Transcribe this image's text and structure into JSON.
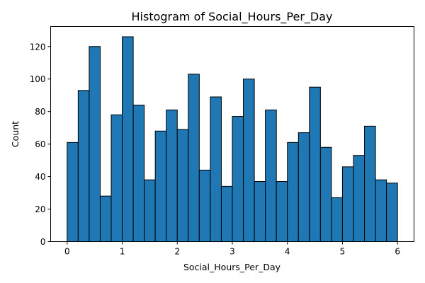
{
  "chart_data": {
    "type": "bar",
    "title": "Histogram of Social_Hours_Per_Day",
    "xlabel": "Social_Hours_Per_Day",
    "ylabel": "Count",
    "bin_edges": [
      0.0,
      0.2,
      0.4,
      0.6,
      0.8,
      1.0,
      1.2,
      1.4,
      1.6,
      1.8,
      2.0,
      2.2,
      2.4,
      2.6,
      2.8,
      3.0,
      3.2,
      3.4,
      3.6,
      3.8,
      4.0,
      4.2,
      4.4,
      4.6,
      4.8,
      5.0,
      5.2,
      5.4,
      5.6,
      5.8,
      6.0
    ],
    "values": [
      61,
      93,
      120,
      28,
      78,
      126,
      84,
      38,
      68,
      81,
      69,
      103,
      44,
      89,
      34,
      77,
      100,
      37,
      81,
      37,
      61,
      67,
      95,
      58,
      27,
      46,
      53,
      71,
      38,
      36
    ],
    "xlim": [
      -0.3,
      6.3
    ],
    "ylim": [
      0,
      132.3
    ],
    "xticks": [
      0,
      1,
      2,
      3,
      4,
      5,
      6
    ],
    "xtick_labels": [
      "0",
      "1",
      "2",
      "3",
      "4",
      "5",
      "6"
    ],
    "yticks": [
      0,
      20,
      40,
      60,
      80,
      100,
      120
    ],
    "ytick_labels": [
      "0",
      "20",
      "40",
      "60",
      "80",
      "100",
      "120"
    ],
    "bar_color": "#1f77b4",
    "edge_color": "#000000",
    "grid": false,
    "legend": "none"
  }
}
